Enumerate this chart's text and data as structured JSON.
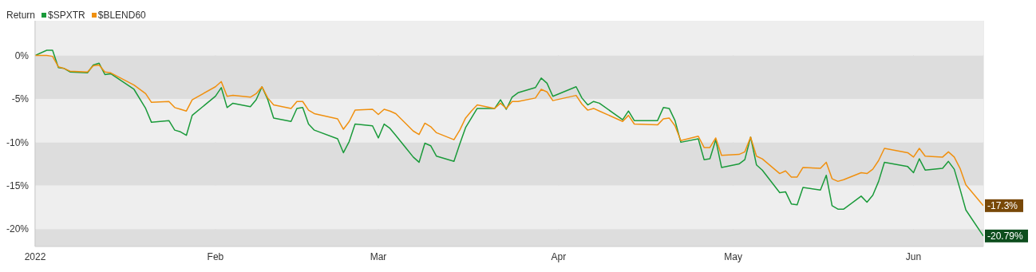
{
  "chart_data": {
    "type": "line",
    "legend_title": "Return",
    "legend": "top left",
    "grid": true,
    "x": [
      "2022-01-01",
      "2022-01-03",
      "2022-01-04",
      "2022-01-05",
      "2022-01-06",
      "2022-01-07",
      "2022-01-10",
      "2022-01-11",
      "2022-01-12",
      "2022-01-13",
      "2022-01-14",
      "2022-01-18",
      "2022-01-20",
      "2022-01-21",
      "2022-01-24",
      "2022-01-25",
      "2022-01-26",
      "2022-01-27",
      "2022-01-28",
      "2022-02-01",
      "2022-02-02",
      "2022-02-03",
      "2022-02-04",
      "2022-02-07",
      "2022-02-08",
      "2022-02-09",
      "2022-02-10",
      "2022-02-11",
      "2022-02-14",
      "2022-02-15",
      "2022-02-16",
      "2022-02-17",
      "2022-02-18",
      "2022-02-22",
      "2022-02-23",
      "2022-02-24",
      "2022-02-25",
      "2022-02-28",
      "2022-03-01",
      "2022-03-02",
      "2022-03-03",
      "2022-03-04",
      "2022-03-07",
      "2022-03-08",
      "2022-03-09",
      "2022-03-10",
      "2022-03-11",
      "2022-03-14",
      "2022-03-15",
      "2022-03-16",
      "2022-03-17",
      "2022-03-18",
      "2022-03-21",
      "2022-03-22",
      "2022-03-23",
      "2022-03-24",
      "2022-03-25",
      "2022-03-28",
      "2022-03-29",
      "2022-03-30",
      "2022-03-31",
      "2022-04-04",
      "2022-04-05",
      "2022-04-06",
      "2022-04-07",
      "2022-04-08",
      "2022-04-12",
      "2022-04-13",
      "2022-04-14",
      "2022-04-18",
      "2022-04-19",
      "2022-04-20",
      "2022-04-21",
      "2022-04-22",
      "2022-04-25",
      "2022-04-26",
      "2022-04-27",
      "2022-04-28",
      "2022-04-29",
      "2022-05-02",
      "2022-05-03",
      "2022-05-04",
      "2022-05-05",
      "2022-05-06",
      "2022-05-09",
      "2022-05-10",
      "2022-05-11",
      "2022-05-12",
      "2022-05-13",
      "2022-05-16",
      "2022-05-17",
      "2022-05-18",
      "2022-05-19",
      "2022-05-20",
      "2022-05-23",
      "2022-05-24",
      "2022-05-25",
      "2022-05-26",
      "2022-05-27",
      "2022-05-31",
      "2022-06-01",
      "2022-06-02",
      "2022-06-03",
      "2022-06-06",
      "2022-06-07",
      "2022-06-08",
      "2022-06-09",
      "2022-06-10",
      "2022-06-13"
    ],
    "series": [
      {
        "name": "$SPXTR",
        "color": "#1a9a3a",
        "values": [
          0,
          0.6,
          0.6,
          -1.4,
          -1.5,
          -1.9,
          -2.0,
          -1.1,
          -0.9,
          -2.2,
          -2.1,
          -3.9,
          -6.1,
          -7.7,
          -7.5,
          -8.6,
          -8.8,
          -9.2,
          -6.9,
          -4.7,
          -3.7,
          -6.0,
          -5.5,
          -5.9,
          -5.1,
          -3.6,
          -5.1,
          -7.2,
          -7.6,
          -6.1,
          -6.0,
          -7.9,
          -8.6,
          -9.6,
          -11.2,
          -9.9,
          -7.9,
          -8.1,
          -9.5,
          -7.9,
          -8.4,
          -9.2,
          -11.7,
          -12.3,
          -10.1,
          -10.4,
          -11.6,
          -12.2,
          -10.2,
          -8.3,
          -7.2,
          -6.1,
          -6.1,
          -5.1,
          -6.2,
          -4.8,
          -4.3,
          -3.7,
          -2.6,
          -3.2,
          -4.7,
          -3.6,
          -4.9,
          -5.7,
          -5.3,
          -5.5,
          -7.4,
          -6.4,
          -7.5,
          -7.5,
          -6.0,
          -6.1,
          -7.5,
          -10.0,
          -9.6,
          -12.0,
          -11.9,
          -9.7,
          -12.9,
          -12.5,
          -12.0,
          -9.4,
          -12.6,
          -13.2,
          -15.8,
          -15.7,
          -17.1,
          -17.2,
          -15.2,
          -15.5,
          -13.8,
          -17.3,
          -17.7,
          -17.7,
          -16.2,
          -16.9,
          -16.1,
          -14.5,
          -12.3,
          -12.8,
          -13.5,
          -11.9,
          -13.2,
          -13.0,
          -12.2,
          -13.1,
          -15.4,
          -17.8,
          -20.79
        ],
        "value_labels": [
          null,
          null,
          null,
          null,
          null,
          null,
          null,
          null,
          null,
          null,
          null,
          null,
          null,
          null,
          null,
          null,
          null,
          null,
          null,
          null,
          null,
          null,
          null,
          null,
          null,
          null,
          null,
          null,
          null,
          null,
          null,
          null,
          null,
          null,
          null,
          null,
          null,
          null,
          null,
          null,
          null,
          null,
          null,
          null,
          null,
          null,
          null,
          null,
          null,
          null,
          null,
          null,
          null,
          null,
          null,
          null,
          null,
          null,
          null,
          null,
          null,
          null,
          null,
          null,
          null,
          null,
          null,
          null,
          null,
          null,
          null,
          null,
          null,
          null,
          null,
          null,
          null,
          null,
          null,
          null,
          null,
          null,
          null,
          null,
          null,
          null,
          null,
          null,
          null,
          null,
          null,
          null,
          null,
          null,
          null,
          null,
          null,
          null,
          null,
          null,
          null,
          null,
          null,
          null,
          null,
          null,
          null,
          null,
          "-20.79%"
        ]
      },
      {
        "name": "$BLEND60",
        "color": "#f0900f",
        "values": [
          0,
          0,
          -0.1,
          -1.3,
          -1.5,
          -1.8,
          -1.9,
          -1.2,
          -1.1,
          -1.9,
          -2.0,
          -3.4,
          -4.4,
          -5.4,
          -5.3,
          -6.0,
          -6.2,
          -6.4,
          -5.1,
          -3.6,
          -3.0,
          -4.7,
          -4.6,
          -4.8,
          -4.4,
          -3.6,
          -4.9,
          -5.7,
          -6.1,
          -5.3,
          -5.3,
          -6.3,
          -6.7,
          -7.3,
          -8.5,
          -7.6,
          -6.3,
          -6.2,
          -6.8,
          -6.2,
          -6.4,
          -6.7,
          -8.7,
          -9.1,
          -7.8,
          -8.2,
          -8.9,
          -9.7,
          -8.6,
          -7.2,
          -6.4,
          -5.7,
          -6.1,
          -5.5,
          -6.1,
          -5.3,
          -5.3,
          -4.9,
          -3.9,
          -4.2,
          -5.2,
          -4.6,
          -5.6,
          -6.3,
          -6.1,
          -6.4,
          -7.6,
          -6.9,
          -7.9,
          -8.0,
          -7.3,
          -7.2,
          -8.1,
          -9.8,
          -9.3,
          -10.6,
          -10.6,
          -9.5,
          -11.5,
          -11.4,
          -11.1,
          -9.4,
          -11.6,
          -11.9,
          -13.6,
          -13.3,
          -14.0,
          -14.0,
          -12.9,
          -13.0,
          -12.3,
          -14.2,
          -14.5,
          -14.3,
          -13.5,
          -13.6,
          -13.1,
          -12.1,
          -10.7,
          -11.2,
          -11.7,
          -10.7,
          -11.6,
          -11.7,
          -11.1,
          -11.7,
          -13.0,
          -14.9,
          -17.3
        ],
        "value_labels": [
          null,
          null,
          null,
          null,
          null,
          null,
          null,
          null,
          null,
          null,
          null,
          null,
          null,
          null,
          null,
          null,
          null,
          null,
          null,
          null,
          null,
          null,
          null,
          null,
          null,
          null,
          null,
          null,
          null,
          null,
          null,
          null,
          null,
          null,
          null,
          null,
          null,
          null,
          null,
          null,
          null,
          null,
          null,
          null,
          null,
          null,
          null,
          null,
          null,
          null,
          null,
          null,
          null,
          null,
          null,
          null,
          null,
          null,
          null,
          null,
          null,
          null,
          null,
          null,
          null,
          null,
          null,
          null,
          null,
          null,
          null,
          null,
          null,
          null,
          null,
          null,
          null,
          null,
          null,
          null,
          null,
          null,
          null,
          null,
          null,
          null,
          null,
          null,
          null,
          null,
          null,
          null,
          null,
          null,
          null,
          null,
          null,
          null,
          null,
          null,
          null,
          null,
          null,
          null,
          null,
          null,
          null,
          null,
          "-17.3%"
        ]
      }
    ],
    "xlim": [
      "2022-01-01",
      "2022-06-13"
    ],
    "xticks": [
      {
        "value": "2022-01-01",
        "label": "2022"
      },
      {
        "value": "2022-02-01",
        "label": "Feb"
      },
      {
        "value": "2022-03-01",
        "label": "Mar"
      },
      {
        "value": "2022-04-01",
        "label": "Apr"
      },
      {
        "value": "2022-05-01",
        "label": "May"
      },
      {
        "value": "2022-06-01",
        "label": "Jun"
      }
    ],
    "ylim": [
      -22,
      4
    ],
    "yticks": [
      {
        "value": 0,
        "label": "0%"
      },
      {
        "value": -5,
        "label": "-5%"
      },
      {
        "value": -10,
        "label": "-10%"
      },
      {
        "value": -15,
        "label": "-15%"
      },
      {
        "value": -20,
        "label": "-20%"
      }
    ]
  }
}
